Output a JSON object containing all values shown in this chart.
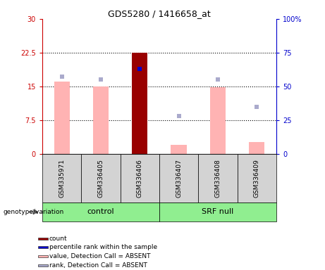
{
  "title": "GDS5280 / 1416658_at",
  "samples": [
    "GSM335971",
    "GSM336405",
    "GSM336406",
    "GSM336407",
    "GSM336408",
    "GSM336409"
  ],
  "pink_bar_values": [
    16.0,
    15.0,
    22.5,
    2.0,
    14.8,
    2.6
  ],
  "dark_red_bar_index": 2,
  "blue_square_values": [
    57,
    55,
    63,
    28,
    55,
    35
  ],
  "blue_square_index": 2,
  "ylim_left": [
    0,
    30
  ],
  "ylim_right": [
    0,
    100
  ],
  "yticks_left": [
    0,
    7.5,
    15,
    22.5,
    30
  ],
  "yticks_right": [
    0,
    25,
    50,
    75,
    100
  ],
  "ytick_labels_left": [
    "0",
    "7.5",
    "15",
    "22.5",
    "30"
  ],
  "ytick_labels_right": [
    "0",
    "25",
    "50",
    "75",
    "100%"
  ],
  "left_axis_color": "#cc0000",
  "right_axis_color": "#0000cc",
  "pink_bar_color": "#ffb3b3",
  "dark_red_color": "#990000",
  "blue_square_color": "#aaaacc",
  "blue_special_color": "#0000cc",
  "grid_line_values": [
    7.5,
    15.0,
    22.5
  ],
  "group_defs": [
    {
      "label": "control",
      "start": 0,
      "end": 3
    },
    {
      "label": "SRF null",
      "start": 3,
      "end": 6
    }
  ],
  "group_color": "#90ee90",
  "genotype_label": "genotype/variation",
  "bg_color_xticklabels": "#d3d3d3",
  "legend_items": [
    {
      "label": "count",
      "color": "#990000"
    },
    {
      "label": "percentile rank within the sample",
      "color": "#0000cc"
    },
    {
      "label": "value, Detection Call = ABSENT",
      "color": "#ffb3b3"
    },
    {
      "label": "rank, Detection Call = ABSENT",
      "color": "#aaaacc"
    }
  ],
  "bar_width": 0.4
}
